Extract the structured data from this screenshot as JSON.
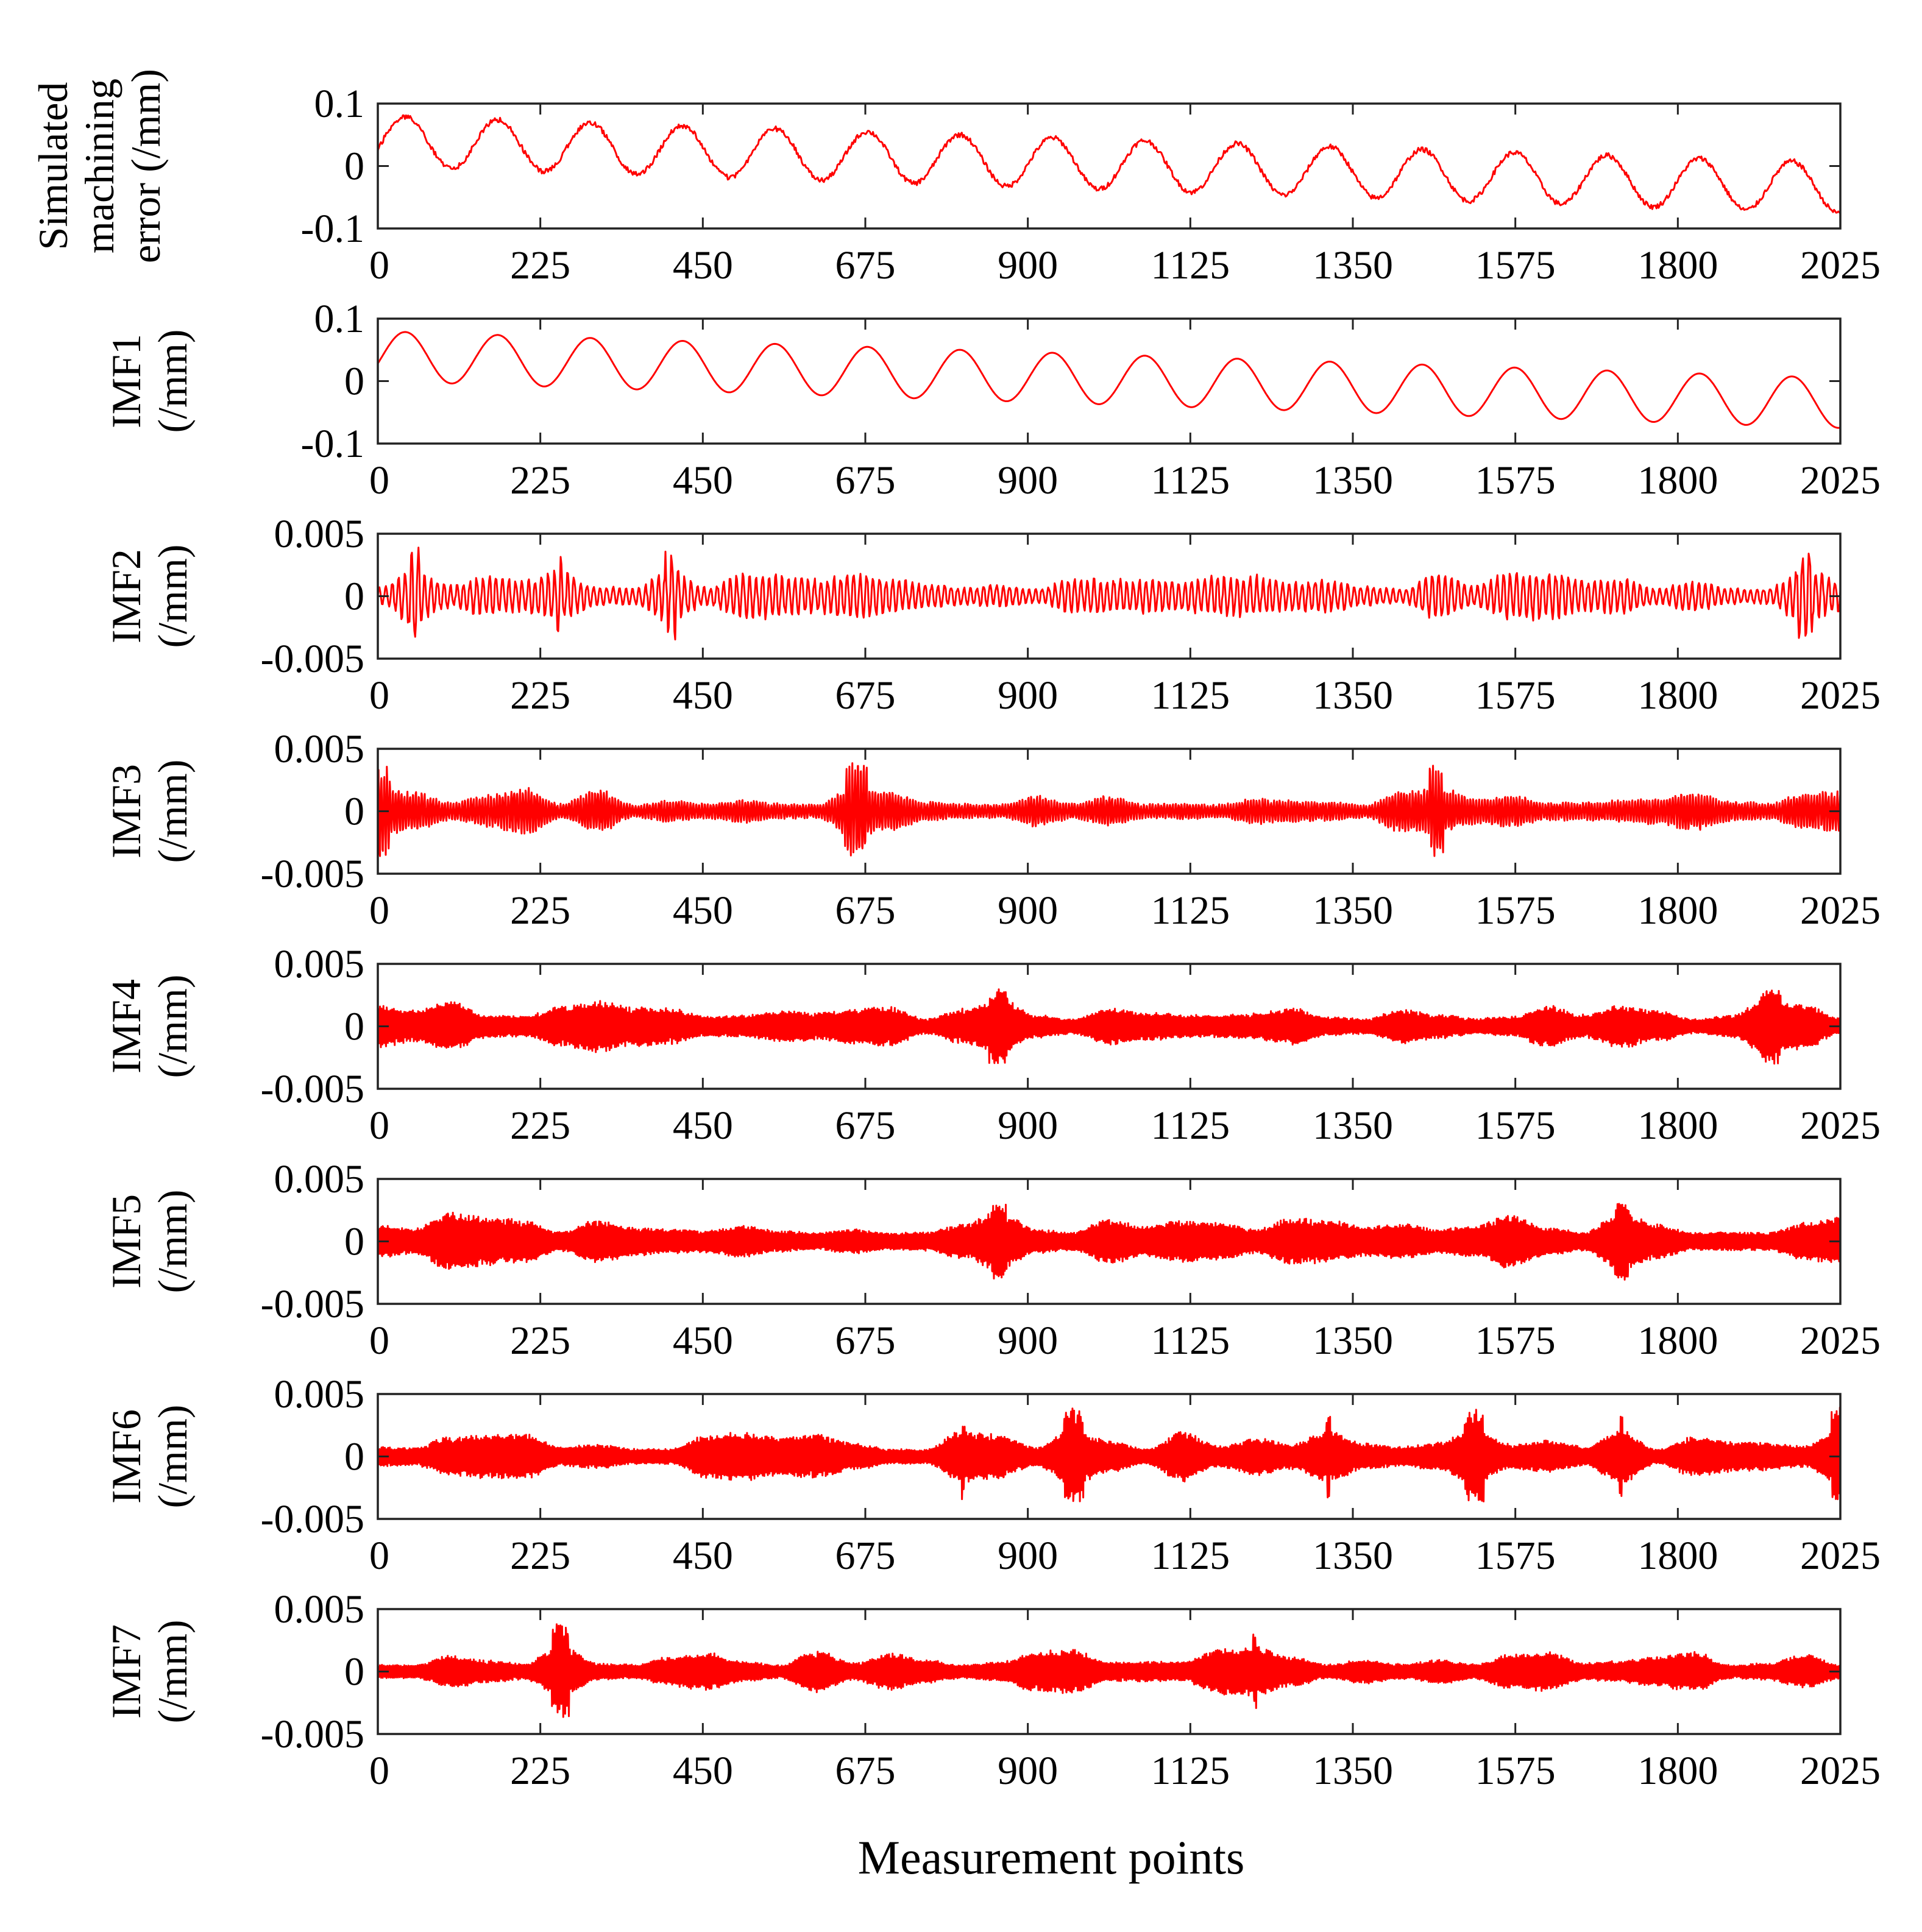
{
  "chart_data": {
    "type": "line",
    "line_color": "#ff0000",
    "xlabel": "Measurement points",
    "x_range": [
      0,
      2025
    ],
    "x_ticks": [
      0,
      225,
      450,
      675,
      900,
      1125,
      1350,
      1575,
      1800,
      2025
    ],
    "x_tick_labels": [
      "0",
      "225",
      "450",
      "675",
      "900",
      "1125",
      "1350",
      "1575",
      "1800",
      "2025"
    ],
    "panels": [
      {
        "name": "Simulated machining error",
        "ylabel_lines": [
          "Simulated",
          "machining",
          "error (/mm)"
        ],
        "ylim": [
          -0.1,
          0.1
        ],
        "y_ticks": [
          -0.1,
          0,
          0.1
        ],
        "y_tick_labels": [
          "-0.1",
          "0",
          "0.1"
        ],
        "signal": {
          "kind": "sine_trend",
          "start_offset": 0.04,
          "end_offset": -0.035,
          "amplitude": 0.04,
          "period": 128,
          "noise": 0.004
        }
      },
      {
        "name": "IMF1",
        "ylabel_lines": [
          "IMF1",
          "(/mm)"
        ],
        "ylim": [
          -0.1,
          0.1
        ],
        "y_ticks": [
          -0.1,
          0,
          0.1
        ],
        "y_tick_labels": [
          "-0.1",
          "0",
          "0.1"
        ],
        "signal": {
          "kind": "sine_trend",
          "start_offset": 0.04,
          "end_offset": -0.035,
          "amplitude": 0.04,
          "period": 128,
          "noise": 0
        }
      },
      {
        "name": "IMF2",
        "ylabel_lines": [
          "IMF2",
          "(/mm)"
        ],
        "ylim": [
          -0.005,
          0.005
        ],
        "y_ticks": [
          -0.005,
          0,
          0.005
        ],
        "y_tick_labels": [
          "-0.005",
          "0",
          "0.005"
        ],
        "signal": {
          "kind": "burst",
          "period": 9,
          "base_amplitude": 0.0025,
          "peak_amplitude": 0.0043,
          "seed": 2
        }
      },
      {
        "name": "IMF3",
        "ylabel_lines": [
          "IMF3",
          "(/mm)"
        ],
        "ylim": [
          -0.005,
          0.005
        ],
        "y_ticks": [
          -0.005,
          0,
          0.005
        ],
        "y_tick_labels": [
          "-0.005",
          "0",
          "0.005"
        ],
        "signal": {
          "kind": "burst",
          "period": 4,
          "base_amplitude": 0.0022,
          "peak_amplitude": 0.004,
          "seed": 3
        }
      },
      {
        "name": "IMF4",
        "ylabel_lines": [
          "IMF4",
          "(/mm)"
        ],
        "ylim": [
          -0.005,
          0.005
        ],
        "y_ticks": [
          -0.005,
          0,
          0.005
        ],
        "y_tick_labels": [
          "-0.005",
          "0",
          "0.005"
        ],
        "signal": {
          "kind": "burst",
          "period": 2.4,
          "base_amplitude": 0.0024,
          "peak_amplitude": 0.0033,
          "seed": 4
        }
      },
      {
        "name": "IMF5",
        "ylabel_lines": [
          "IMF5",
          "(/mm)"
        ],
        "ylim": [
          -0.005,
          0.005
        ],
        "y_ticks": [
          -0.005,
          0,
          0.005
        ],
        "y_tick_labels": [
          "-0.005",
          "0",
          "0.005"
        ],
        "signal": {
          "kind": "burst",
          "period": 2.2,
          "base_amplitude": 0.0026,
          "peak_amplitude": 0.0034,
          "seed": 5
        }
      },
      {
        "name": "IMF6",
        "ylabel_lines": [
          "IMF6",
          "(/mm)"
        ],
        "ylim": [
          -0.005,
          0.005
        ],
        "y_ticks": [
          -0.005,
          0,
          0.005
        ],
        "y_tick_labels": [
          "-0.005",
          "0",
          "0.005"
        ],
        "signal": {
          "kind": "burst",
          "period": 2.3,
          "base_amplitude": 0.0024,
          "peak_amplitude": 0.004,
          "seed": 6
        }
      },
      {
        "name": "IMF7",
        "ylabel_lines": [
          "IMF7",
          "(/mm)"
        ],
        "ylim": [
          -0.005,
          0.005
        ],
        "y_ticks": [
          -0.005,
          0,
          0.005
        ],
        "y_tick_labels": [
          "-0.005",
          "0",
          "0.005"
        ],
        "signal": {
          "kind": "burst",
          "period": 2.6,
          "base_amplitude": 0.0022,
          "peak_amplitude": 0.004,
          "seed": 7
        }
      }
    ]
  }
}
